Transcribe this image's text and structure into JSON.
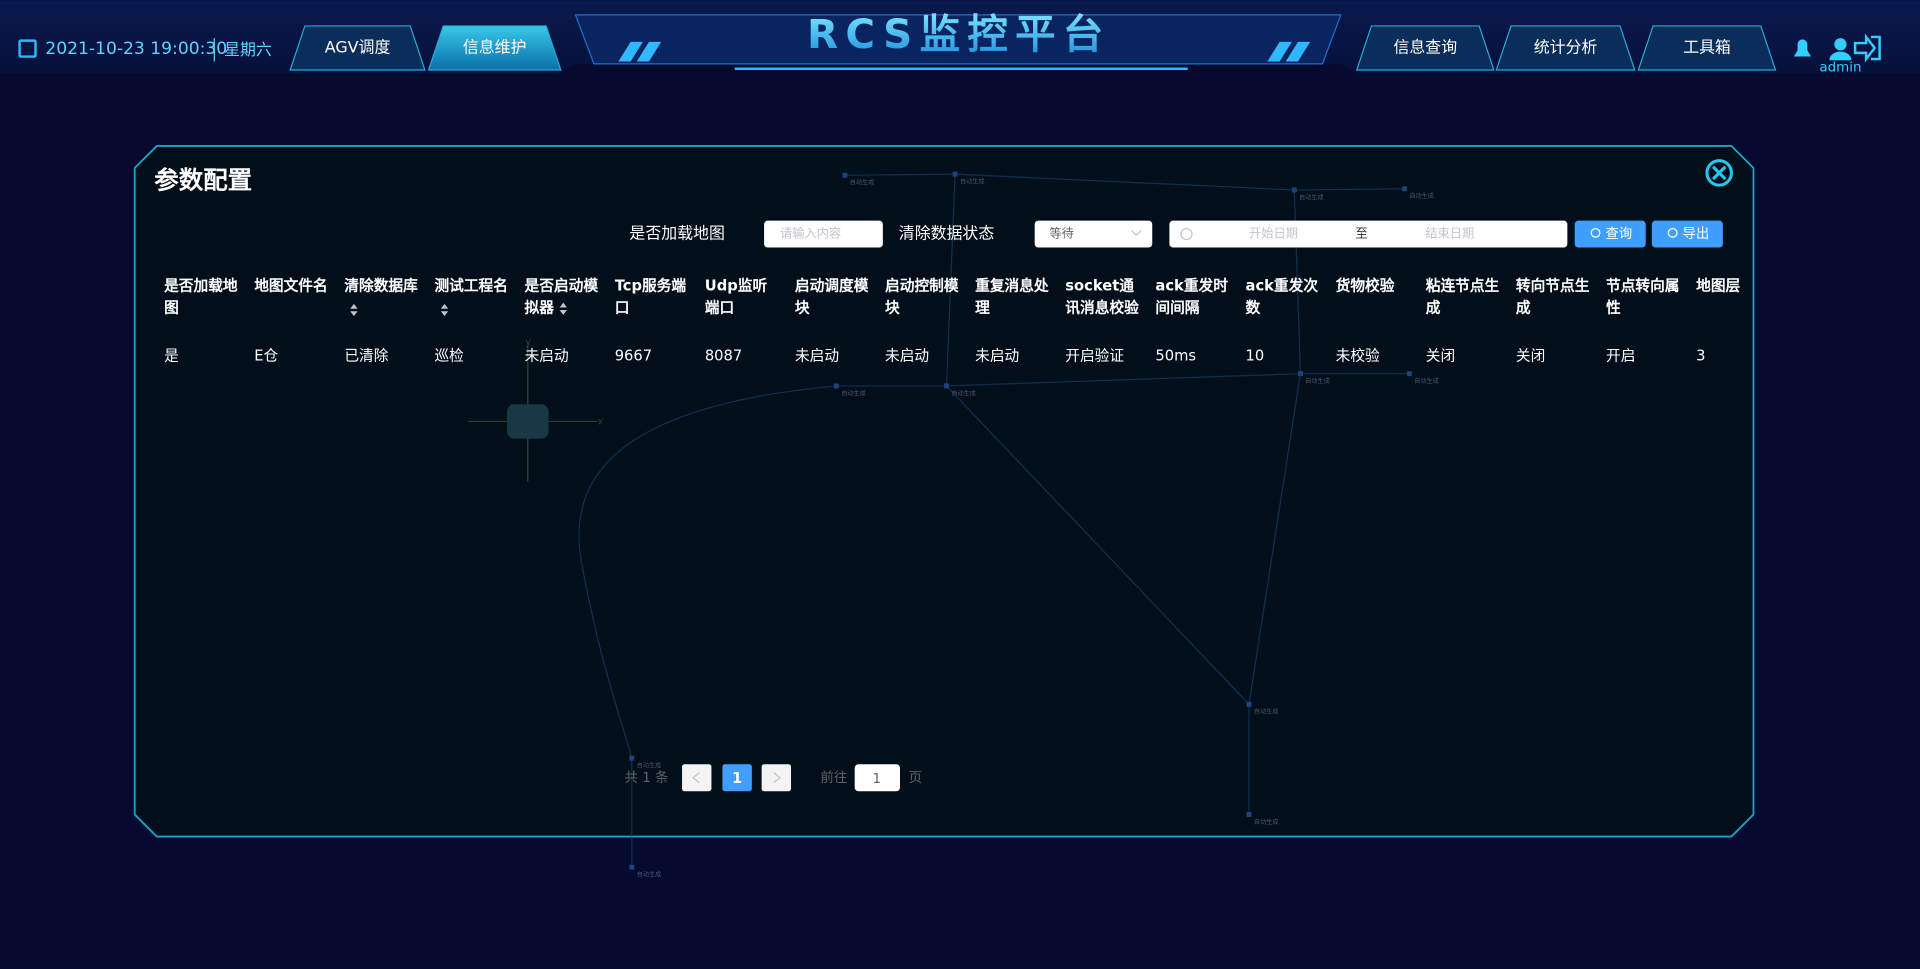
{
  "header": {
    "datetime": "2021-10-23 19:00:30",
    "weekday": "星期六",
    "title": "RCS监控平台",
    "nav_left": [
      "AGV调度",
      "信息维护"
    ],
    "nav_right": [
      "信息查询",
      "统计分析",
      "工具箱"
    ],
    "user": "admin"
  },
  "dialog": {
    "title": "参数配置",
    "filters": {
      "load_map_label": "是否加载地图",
      "load_map_placeholder": "请输入内容",
      "clear_state_label": "清除数据状态",
      "clear_state_value": "等待",
      "start_placeholder": "开始日期",
      "range_separator": "至",
      "end_placeholder": "结束日期",
      "query_button": "查询",
      "export_button": "导出"
    },
    "table": {
      "headers": [
        "是否加载地图",
        "地图文件名",
        "清除数据库",
        "测试工程名",
        "是否启动模拟器",
        "Tcp服务端口",
        "Udp监听端口",
        "启动调度模块",
        "启动控制模块",
        "重复消息处理",
        "socket通讯消息校验",
        "ack重发时间间隔",
        "ack重发次数",
        "货物校验",
        "粘连节点生成",
        "转向节点生成",
        "节点转向属性",
        "地图层"
      ],
      "rows": [
        [
          "是",
          "E仓",
          "已清除",
          "巡检",
          "未启动",
          "9667",
          "8087",
          "未启动",
          "未启动",
          "未启动",
          "开启验证",
          "50ms",
          "10",
          "未校验",
          "关闭",
          "关闭",
          "开启",
          "3"
        ]
      ]
    },
    "pagination": {
      "total": "共 1 条",
      "current_page": "1",
      "goto_label": "前往",
      "goto_value": "1",
      "page_suffix": "页"
    }
  },
  "map": {
    "node_label": "自动生成",
    "axis_x": "x",
    "axis_y": "y"
  }
}
